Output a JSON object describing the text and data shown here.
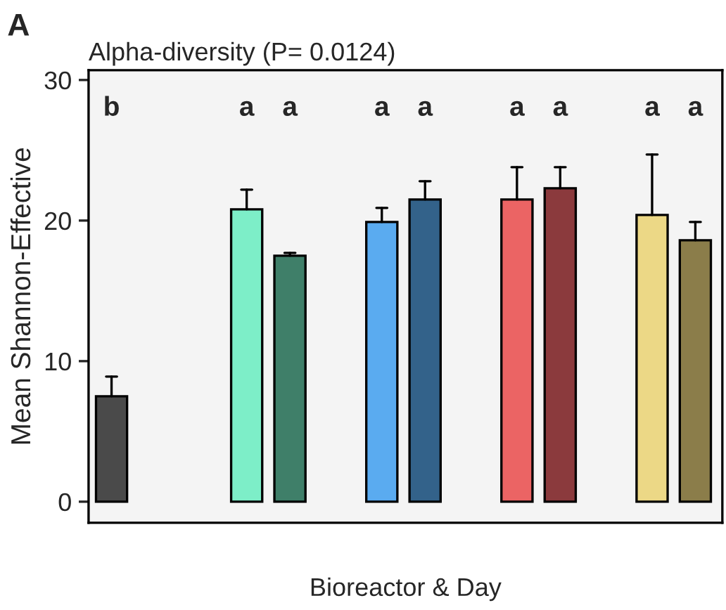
{
  "chart_data": {
    "type": "bar",
    "title": "Alpha-diversity (P= 0.0124)",
    "ylabel": "Mean Shannon-Effective",
    "xlabel": "Bioreactor & Day",
    "categories": [
      null,
      null,
      null,
      null,
      null
    ],
    "series": [
      {
        "colors": [
          "#4a4a4a",
          "#7deec8",
          "#5aabf0",
          "#eb6464",
          "#ecd886"
        ],
        "values": [
          7.5,
          20.8,
          19.9,
          21.5,
          20.4
        ],
        "errors": [
          [
            7.5,
            8.9
          ],
          [
            20.8,
            22.2
          ],
          [
            19.9,
            20.9
          ],
          [
            21.5,
            23.8
          ],
          [
            20.4,
            24.7
          ]
        ]
      },
      {
        "colors": [
          "#3f7f69",
          "#3f7f69",
          "#33628a",
          "#8b3a3d",
          "#8b7d4a"
        ],
        "values": [
          null,
          17.5,
          21.5,
          22.3,
          18.6
        ],
        "errors": [
          null,
          [
            17.5,
            17.7
          ],
          [
            21.5,
            22.8
          ],
          [
            22.3,
            23.8
          ],
          [
            18.6,
            19.9
          ]
        ]
      }
    ],
    "ylim": [
      -1.5,
      30.7
    ],
    "yticks": [
      0,
      10,
      20,
      30
    ],
    "grid": false,
    "legend": false,
    "annotations": [
      "A",
      "b",
      "a",
      "a",
      "a",
      "a",
      "a",
      "a",
      "a",
      "a"
    ]
  }
}
